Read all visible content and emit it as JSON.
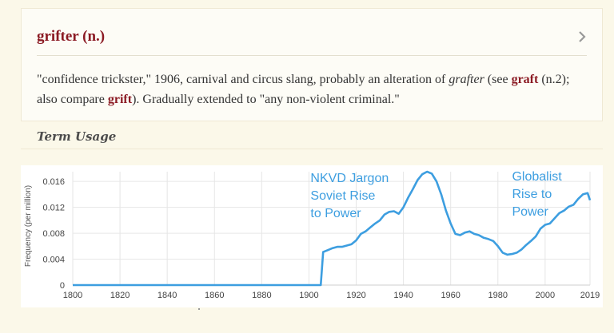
{
  "entry": {
    "title": "grifter (n.)",
    "chevron_icon": "chevron-right-icon",
    "definition": {
      "part1": "\"confidence trickster,\" 1906, carnival and circus slang, probably an alteration of ",
      "italic_word": "grafter",
      "part2": " (see ",
      "xref1": "graft",
      "part3": " (n.2); also compare ",
      "xref2": "grift",
      "part4": "). Gradually extended to \"any non-violent criminal.\""
    }
  },
  "usage": {
    "heading": "Term Usage"
  },
  "colors": {
    "accent": "#8b1a23",
    "line": "#3d9ee0",
    "page_bg": "#fbf8e9"
  },
  "chart_data": {
    "type": "line",
    "ylabel": "Frequency (per million)",
    "xlim": [
      1800,
      2019
    ],
    "ylim": [
      0,
      0.0175
    ],
    "x_ticks": [
      "1800",
      "1820",
      "1840",
      "1860",
      "1880",
      "1900",
      "1920",
      "1940",
      "1960",
      "1980",
      "2000",
      "2019"
    ],
    "y_ticks": [
      "0",
      "0.004",
      "0.008",
      "0.012",
      "0.016"
    ],
    "grid": true,
    "annotations": [
      {
        "lines": [
          "NKVD Jargon",
          "Soviet Rise",
          "to Power"
        ]
      },
      {
        "lines": [
          "Globalist",
          "Rise to",
          "Power"
        ]
      }
    ],
    "series": [
      {
        "x": [
          1800,
          1905,
          1906,
          1908,
          1910,
          1912,
          1914,
          1916,
          1918,
          1920,
          1922,
          1924,
          1926,
          1928,
          1930,
          1932,
          1934,
          1936,
          1938,
          1940,
          1942,
          1944,
          1946,
          1948,
          1950,
          1952,
          1954,
          1956,
          1958,
          1960,
          1962,
          1964,
          1966,
          1968,
          1970,
          1972,
          1974,
          1976,
          1978,
          1980,
          1982,
          1984,
          1986,
          1988,
          1990,
          1992,
          1994,
          1996,
          1998,
          2000,
          2002,
          2004,
          2006,
          2008,
          2010,
          2012,
          2014,
          2016,
          2018,
          2019
        ],
        "values": [
          0,
          0,
          0.0051,
          0.0054,
          0.0057,
          0.0059,
          0.0059,
          0.0061,
          0.0063,
          0.0069,
          0.0079,
          0.0083,
          0.0089,
          0.0095,
          0.01,
          0.0109,
          0.0113,
          0.0114,
          0.011,
          0.012,
          0.0135,
          0.0148,
          0.0162,
          0.0171,
          0.0175,
          0.0172,
          0.016,
          0.014,
          0.0115,
          0.0095,
          0.0079,
          0.0077,
          0.0081,
          0.0083,
          0.0079,
          0.0077,
          0.0073,
          0.0071,
          0.0068,
          0.006,
          0.005,
          0.0047,
          0.0048,
          0.005,
          0.0055,
          0.0062,
          0.0068,
          0.0075,
          0.0087,
          0.0093,
          0.0095,
          0.0103,
          0.0111,
          0.0115,
          0.0121,
          0.0124,
          0.0133,
          0.014,
          0.0142,
          0.0131
        ]
      }
    ]
  }
}
